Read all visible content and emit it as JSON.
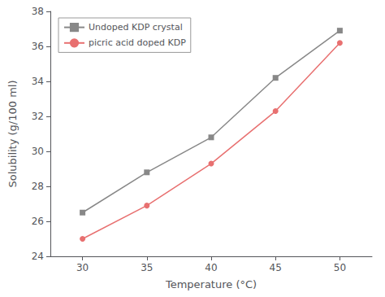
{
  "chart_data": {
    "type": "line",
    "x": [
      30,
      35,
      40,
      45,
      50
    ],
    "series": [
      {
        "name": "Undoped KDP crystal",
        "color": "#888888",
        "marker": "square",
        "values": [
          26.5,
          28.8,
          30.8,
          34.2,
          36.9
        ]
      },
      {
        "name": "picric acid doped KDP",
        "color": "#e87070",
        "marker": "circle",
        "values": [
          25.0,
          26.9,
          29.3,
          32.3,
          36.2
        ]
      }
    ],
    "xlabel": "Temperature (°C)",
    "ylabel": "Solubility (g/100 ml)",
    "xlim": [
      27.5,
      52.5
    ],
    "xticks": [
      30,
      35,
      40,
      45,
      50
    ],
    "ylim": [
      24,
      38
    ],
    "yticks": [
      24,
      26,
      28,
      30,
      32,
      34,
      36,
      38
    ],
    "grid": false,
    "legend": "upper left"
  }
}
